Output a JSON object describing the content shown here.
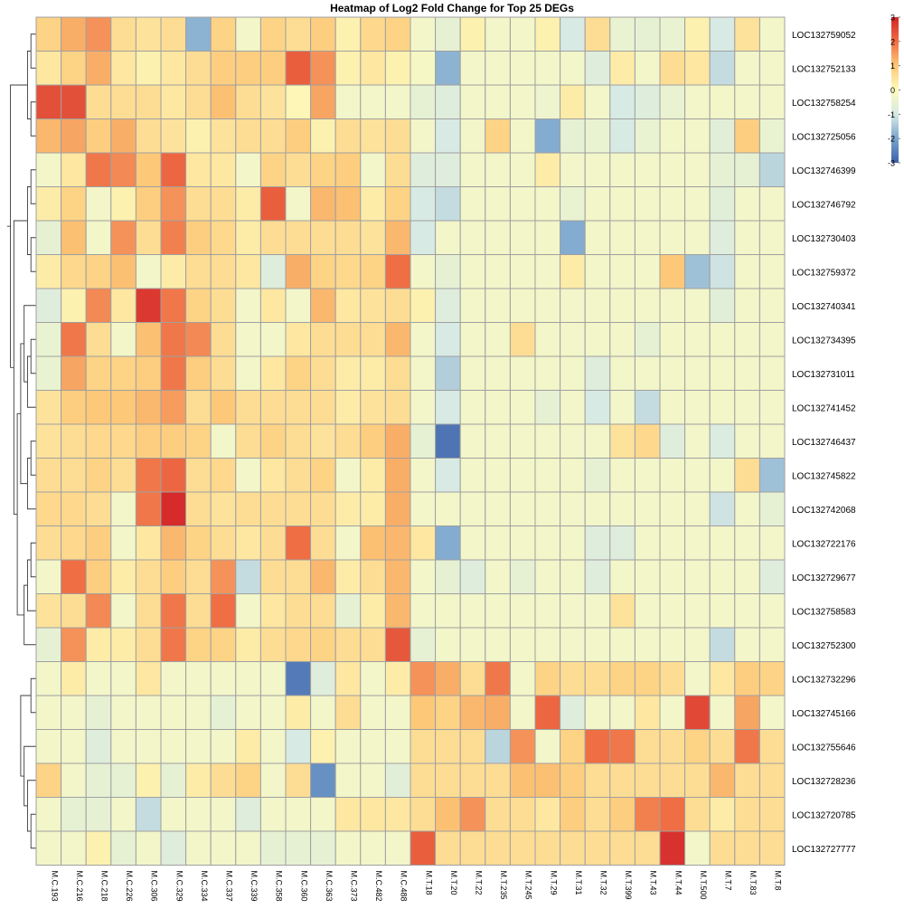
{
  "chart_data": {
    "type": "heatmap",
    "title": "Heatmap of Log2 Fold Change for Top 25 DEGs",
    "legend": {
      "ticks": [
        3,
        2,
        1,
        0,
        -1,
        -2,
        -3
      ],
      "range": [
        -3,
        3
      ]
    },
    "colors": {
      "low": "#3b5fa9",
      "mid": "#fdfbbd",
      "high": "#d22328",
      "cell_border": "#a0a0a0",
      "dendrogram": "#3c3c3c"
    },
    "columns": [
      "M.C.193",
      "M.C.216",
      "M.C.218",
      "M.C.226",
      "M.C.306",
      "M.C.329",
      "M.C.334",
      "M.C.337",
      "M.C.339",
      "M.C.358",
      "M.C.360",
      "M.C.363",
      "M.C.373",
      "M.C.482",
      "M.C.488",
      "M.T.18",
      "M.T.20",
      "M.T.22",
      "M.T.235",
      "M.T.245",
      "M.T.29",
      "M.T.31",
      "M.T.32",
      "M.T.399",
      "M.T.43",
      "M.T.44",
      "M.T.500",
      "M.T.7",
      "M.T.83",
      "M.T.8"
    ],
    "rows": [
      "LOC132759052",
      "LOC132752133",
      "LOC132758254",
      "LOC132725056",
      "LOC132746399",
      "LOC132746792",
      "LOC132730403",
      "LOC132759372",
      "LOC132740341",
      "LOC132734395",
      "LOC132731011",
      "LOC132741452",
      "LOC132746437",
      "LOC132745822",
      "LOC132742068",
      "LOC132722176",
      "LOC132729677",
      "LOC132758583",
      "LOC132752300",
      "LOC132732296",
      "LOC132745166",
      "LOC132755646",
      "LOC132728236",
      "LOC132720785",
      "LOC132727777"
    ],
    "values": [
      [
        0.8,
        1.3,
        1.6,
        0.6,
        0.5,
        0.6,
        -1.8,
        0.8,
        -0.3,
        0.8,
        0.6,
        0.9,
        0.2,
        0.7,
        0.8,
        -0.3,
        -0.6,
        0.2,
        -0.3,
        -0.3,
        0.2,
        -1.0,
        0.6,
        -0.5,
        -0.6,
        -0.5,
        0.2,
        -1.0,
        0.5,
        -0.3
      ],
      [
        0.4,
        0.8,
        1.3,
        0.4,
        0.2,
        0.4,
        0.6,
        0.9,
        0.9,
        0.9,
        2.2,
        1.6,
        0.2,
        0.4,
        0.2,
        -0.2,
        -1.8,
        -0.3,
        -0.3,
        -0.3,
        -0.3,
        -0.3,
        -0.8,
        0.3,
        -0.3,
        0.6,
        0.4,
        -1.2,
        -0.3,
        -0.3
      ],
      [
        2.4,
        2.4,
        0.6,
        0.6,
        0.6,
        0.4,
        0.6,
        1.1,
        0.6,
        0.5,
        0.1,
        1.4,
        -0.3,
        -0.3,
        -0.3,
        -0.6,
        -0.8,
        -0.3,
        -0.3,
        -0.3,
        -0.4,
        0.3,
        -0.3,
        -1.0,
        -0.8,
        -0.5,
        -0.3,
        -0.3,
        -0.3,
        -0.3
      ],
      [
        1.2,
        1.4,
        0.9,
        1.3,
        0.6,
        0.5,
        0.2,
        0.5,
        0.6,
        0.6,
        0.9,
        0.2,
        0.6,
        0.5,
        0.6,
        -0.3,
        -1.0,
        -0.3,
        0.8,
        -0.3,
        -1.9,
        -0.6,
        -0.5,
        -1.0,
        -0.5,
        -0.3,
        -0.3,
        -0.7,
        0.9,
        -0.5
      ],
      [
        -0.3,
        0.4,
        1.9,
        1.7,
        1.0,
        2.1,
        0.4,
        0.4,
        -0.3,
        0.8,
        0.6,
        0.8,
        0.9,
        -0.3,
        0.6,
        -0.8,
        -0.8,
        -0.3,
        -0.3,
        -0.3,
        0.3,
        -0.3,
        -0.3,
        -0.3,
        -0.3,
        -0.3,
        -0.3,
        -0.6,
        -0.6,
        -1.3
      ],
      [
        0.3,
        0.8,
        -0.3,
        0.2,
        0.9,
        1.6,
        0.6,
        0.6,
        0.3,
        2.2,
        -0.3,
        1.2,
        1.1,
        0.3,
        0.8,
        -1.0,
        -1.2,
        -0.3,
        -0.3,
        -0.3,
        -0.3,
        -0.5,
        -0.3,
        -0.3,
        -0.3,
        -0.3,
        -0.3,
        -0.7,
        -0.3,
        -0.3
      ],
      [
        -0.6,
        1.1,
        -0.3,
        1.6,
        0.6,
        1.8,
        0.9,
        0.7,
        0.3,
        0.6,
        0.6,
        0.6,
        0.6,
        0.5,
        1.2,
        -1.0,
        -0.3,
        -0.3,
        -0.3,
        -0.3,
        -0.3,
        -1.9,
        -0.3,
        -0.3,
        -0.3,
        -0.3,
        -0.3,
        -0.8,
        -0.3,
        -0.3
      ],
      [
        0.3,
        0.7,
        0.8,
        1.1,
        -0.3,
        0.3,
        0.6,
        0.6,
        0.4,
        -0.8,
        1.3,
        0.8,
        0.7,
        0.8,
        2.0,
        -0.3,
        -0.6,
        -0.3,
        -0.3,
        -0.3,
        -0.3,
        0.3,
        -0.3,
        -0.3,
        -0.3,
        1.0,
        -1.6,
        -1.1,
        -0.3,
        -0.3
      ],
      [
        -0.8,
        0.2,
        1.7,
        0.4,
        2.7,
        1.9,
        0.8,
        0.6,
        -0.3,
        0.4,
        -0.3,
        1.2,
        0.4,
        0.5,
        0.6,
        0.2,
        -0.8,
        -0.3,
        -0.3,
        -0.3,
        -0.3,
        -0.3,
        -0.3,
        -0.3,
        -0.3,
        -0.3,
        -0.3,
        -0.7,
        -0.3,
        -0.3
      ],
      [
        -0.5,
        1.9,
        0.6,
        -0.3,
        1.1,
        1.9,
        1.7,
        0.6,
        -0.3,
        -0.3,
        0.4,
        0.6,
        0.6,
        0.6,
        1.2,
        -0.3,
        -1.0,
        -0.3,
        -0.3,
        0.6,
        -0.3,
        -0.3,
        -0.3,
        -0.3,
        -0.6,
        -0.3,
        -0.3,
        -0.3,
        -0.3,
        -0.3
      ],
      [
        -0.5,
        1.4,
        0.8,
        0.8,
        0.9,
        1.9,
        0.9,
        0.6,
        -0.3,
        0.4,
        0.8,
        0.6,
        0.3,
        0.3,
        0.6,
        -0.3,
        -1.4,
        -0.3,
        -0.3,
        -0.3,
        -0.3,
        -0.3,
        -0.8,
        -0.3,
        -0.3,
        -0.3,
        -0.3,
        -0.3,
        -0.3,
        -0.3
      ],
      [
        0.5,
        0.9,
        1.0,
        1.0,
        1.2,
        1.5,
        0.6,
        1.0,
        0.6,
        0.6,
        0.6,
        0.6,
        0.3,
        0.5,
        0.6,
        -0.3,
        -1.0,
        -0.3,
        -0.3,
        -0.3,
        -0.6,
        -0.3,
        -1.0,
        -0.3,
        -1.2,
        -0.3,
        -0.3,
        -0.3,
        -0.3,
        -0.3
      ],
      [
        0.5,
        0.6,
        0.7,
        0.7,
        0.9,
        0.9,
        0.8,
        -0.3,
        0.6,
        0.8,
        0.6,
        0.5,
        0.6,
        0.9,
        1.3,
        -0.6,
        -2.7,
        -0.3,
        -0.3,
        -0.3,
        -0.3,
        -0.3,
        -0.3,
        0.5,
        0.7,
        -0.8,
        -0.3,
        -0.9,
        -0.3,
        -0.3
      ],
      [
        0.6,
        0.6,
        0.8,
        0.6,
        1.9,
        2.1,
        0.6,
        0.7,
        -0.3,
        0.4,
        0.6,
        0.8,
        -0.3,
        0.3,
        1.3,
        -0.3,
        -1.0,
        -0.3,
        -0.3,
        -0.3,
        -0.3,
        -0.3,
        -0.6,
        -0.3,
        -0.3,
        -0.3,
        -0.3,
        -0.3,
        0.6,
        -1.6
      ],
      [
        0.7,
        0.7,
        0.6,
        -0.3,
        1.9,
        2.9,
        0.6,
        0.5,
        0.6,
        0.6,
        0.6,
        0.6,
        0.3,
        0.3,
        1.3,
        -0.3,
        -0.3,
        -0.3,
        -0.3,
        -0.3,
        -0.3,
        -0.3,
        -0.3,
        -0.3,
        -0.3,
        -0.3,
        -0.3,
        -1.1,
        -0.3,
        -0.6
      ],
      [
        0.6,
        0.7,
        0.9,
        -0.3,
        0.4,
        1.2,
        0.8,
        0.6,
        0.4,
        0.6,
        2.0,
        0.6,
        -0.3,
        1.1,
        1.2,
        0.4,
        -1.9,
        -0.3,
        -0.3,
        -0.3,
        -0.3,
        -0.3,
        -0.8,
        -0.8,
        -0.3,
        -0.3,
        -0.3,
        -0.3,
        -0.3,
        -0.3
      ],
      [
        -0.3,
        2.0,
        0.9,
        0.3,
        0.6,
        0.9,
        0.6,
        1.6,
        -1.2,
        0.6,
        0.6,
        1.2,
        0.3,
        0.6,
        1.2,
        -0.3,
        -0.6,
        -0.8,
        -0.3,
        -0.6,
        -0.3,
        -0.3,
        -0.8,
        -0.3,
        -0.3,
        -0.3,
        -0.3,
        -0.3,
        -0.3,
        -0.8
      ],
      [
        0.5,
        0.6,
        1.7,
        -0.3,
        0.6,
        1.9,
        0.6,
        2.0,
        -0.3,
        0.4,
        0.6,
        0.6,
        -0.6,
        0.3,
        1.2,
        -0.3,
        -0.3,
        -0.3,
        -0.3,
        -0.3,
        -0.3,
        -0.3,
        -0.3,
        0.5,
        -0.3,
        -0.3,
        -0.3,
        -0.3,
        -0.3,
        -0.3
      ],
      [
        -0.6,
        1.6,
        0.3,
        0.3,
        0.6,
        1.9,
        0.8,
        0.8,
        0.3,
        0.6,
        0.7,
        0.8,
        0.6,
        0.6,
        2.3,
        -0.6,
        -0.3,
        -0.3,
        -0.3,
        -0.3,
        -0.3,
        -0.3,
        -0.3,
        -0.3,
        -0.3,
        -0.3,
        -0.3,
        -1.2,
        -0.3,
        -0.3
      ],
      [
        -0.3,
        0.3,
        -0.3,
        -0.3,
        0.4,
        -0.3,
        -0.3,
        -0.3,
        -0.3,
        -0.3,
        -2.6,
        -0.8,
        0.4,
        -0.3,
        0.3,
        1.6,
        1.3,
        0.6,
        1.9,
        -0.3,
        0.8,
        0.6,
        0.6,
        0.8,
        0.8,
        0.6,
        -0.3,
        0.4,
        0.9,
        0.8
      ],
      [
        -0.3,
        -0.3,
        -0.6,
        -0.3,
        -0.3,
        -0.3,
        -0.3,
        -0.6,
        -0.3,
        -0.3,
        0.3,
        -0.3,
        0.6,
        -0.3,
        -0.3,
        1.0,
        0.8,
        1.2,
        1.3,
        -0.3,
        2.1,
        -0.8,
        -0.3,
        -0.3,
        0.4,
        -0.3,
        2.5,
        -0.3,
        1.4,
        -0.3
      ],
      [
        -0.3,
        -0.3,
        -0.8,
        -0.3,
        -0.3,
        -0.3,
        -0.3,
        -0.3,
        0.3,
        -0.3,
        -1.0,
        0.2,
        -0.3,
        -0.3,
        -0.3,
        0.6,
        0.6,
        0.6,
        -1.3,
        1.6,
        -0.3,
        0.8,
        2.0,
        1.9,
        0.6,
        0.6,
        0.8,
        0.6,
        1.9,
        0.6
      ],
      [
        0.8,
        -0.3,
        -0.6,
        -0.6,
        0.2,
        -0.6,
        0.3,
        0.6,
        0.8,
        -0.3,
        0.6,
        -2.3,
        -0.3,
        -0.3,
        -0.7,
        0.6,
        0.6,
        0.6,
        0.6,
        1.1,
        1.1,
        0.9,
        0.6,
        0.6,
        0.6,
        0.6,
        0.6,
        1.2,
        0.6,
        0.6
      ],
      [
        -0.3,
        -0.6,
        -0.6,
        -0.3,
        -1.2,
        -0.3,
        -0.3,
        -0.3,
        -0.8,
        -0.3,
        -0.3,
        -0.3,
        0.4,
        0.4,
        0.4,
        0.6,
        1.1,
        1.6,
        0.6,
        0.6,
        0.4,
        0.9,
        0.6,
        0.9,
        1.8,
        2.0,
        0.6,
        0.3,
        0.6,
        0.6
      ],
      [
        -0.3,
        -0.3,
        0.2,
        -0.6,
        -0.3,
        -0.8,
        -0.3,
        -0.3,
        -0.3,
        -0.6,
        -0.6,
        -0.6,
        -0.3,
        -0.3,
        -0.3,
        2.2,
        0.6,
        0.6,
        0.6,
        0.6,
        0.6,
        0.6,
        0.6,
        0.6,
        0.6,
        2.8,
        -0.3,
        0.6,
        0.6,
        0.6
      ]
    ]
  }
}
